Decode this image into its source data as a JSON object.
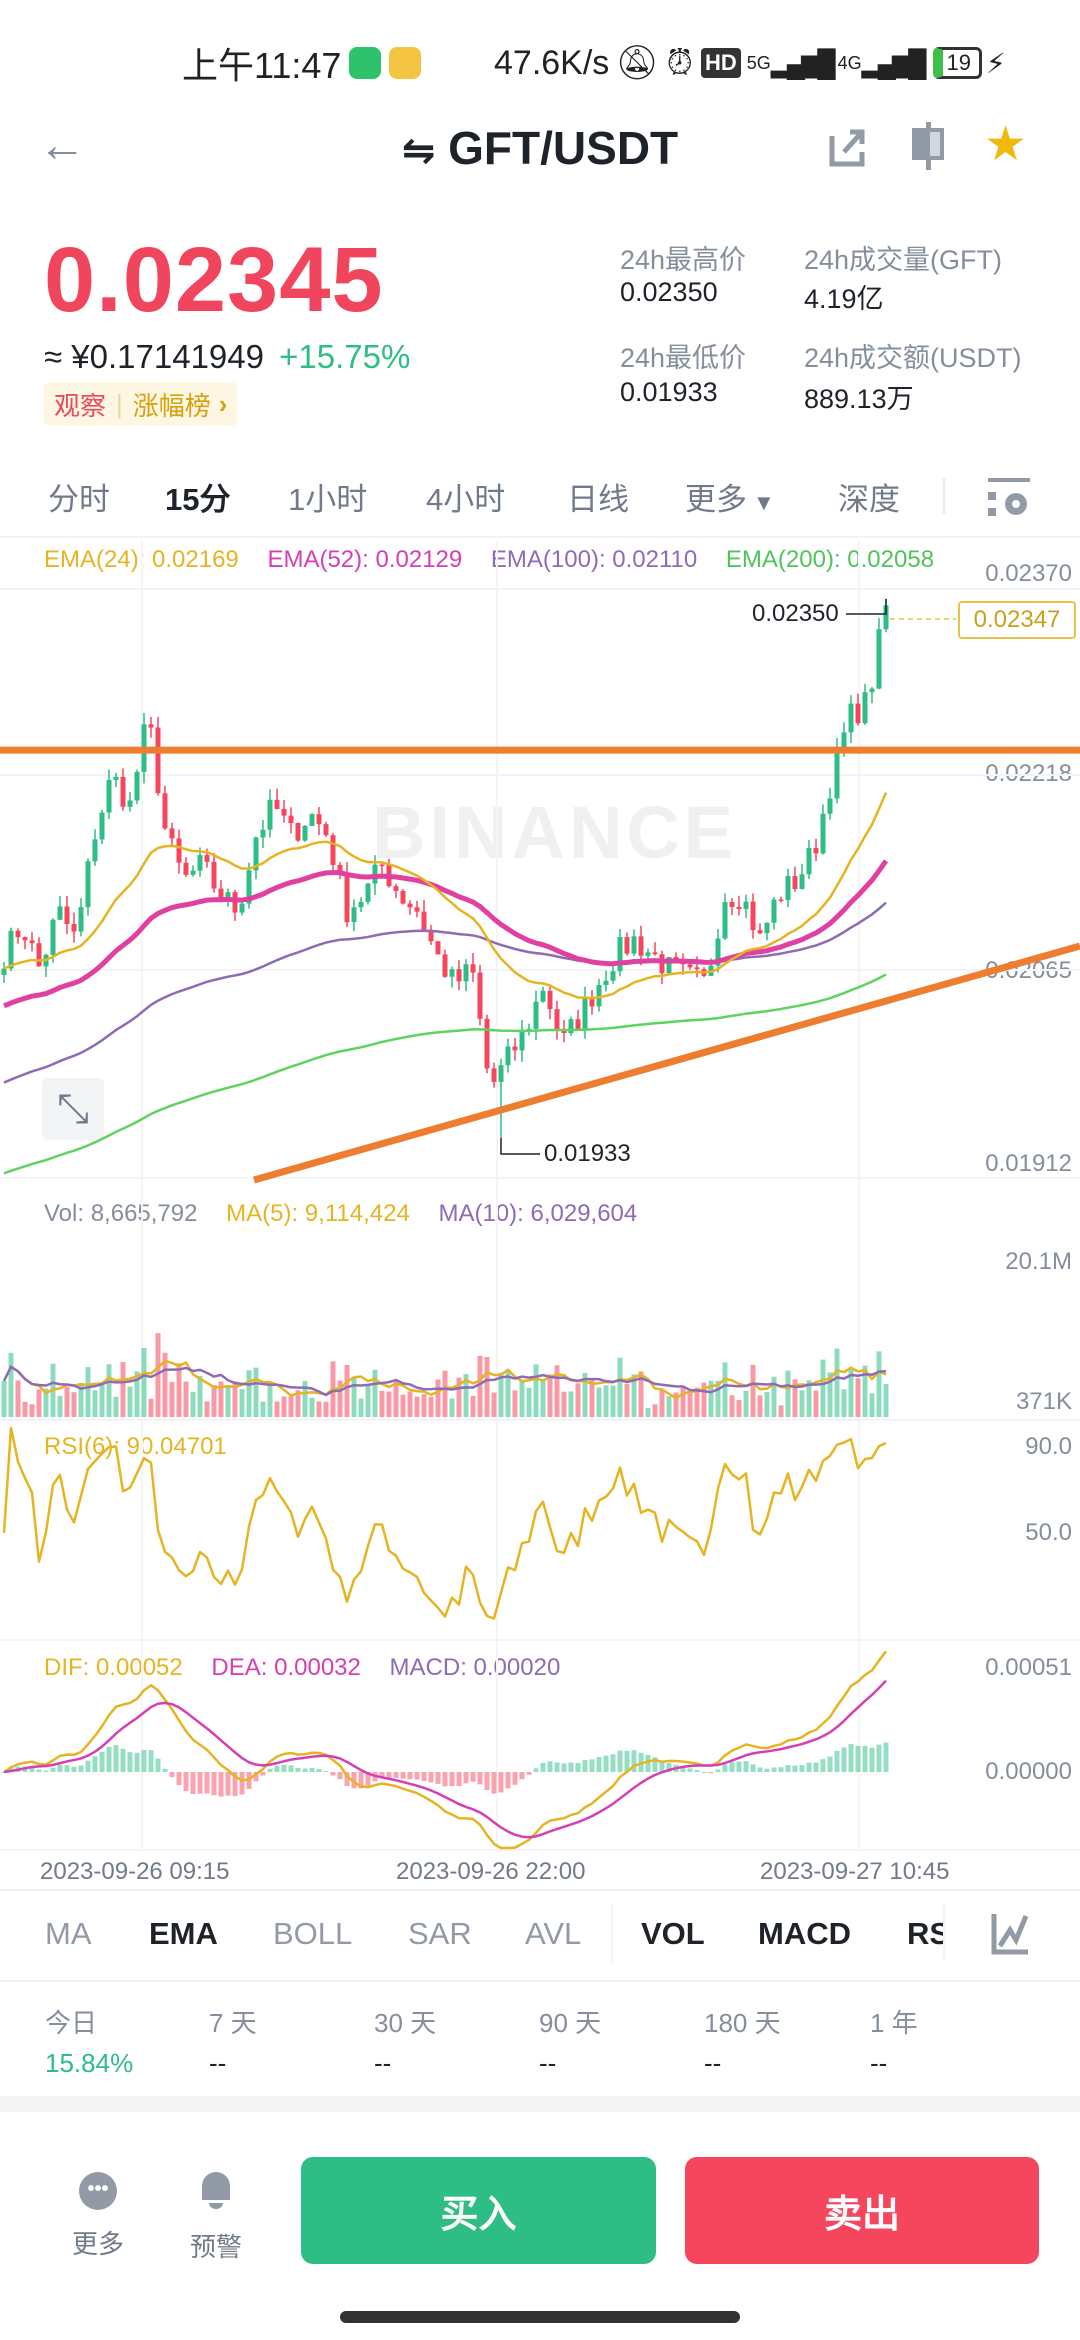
{
  "status_bar": {
    "time": "上午11:47",
    "net_speed": "47.6K/s",
    "hd": "HD",
    "sig1": "5G",
    "sig2": "4G",
    "battery": "19"
  },
  "header": {
    "title": "GFT/USDT",
    "swap_icon": "swap-arrows-icon",
    "share_icon": "share-icon",
    "layout_icon": "layout-icon",
    "favorite_icon": "star-icon"
  },
  "ticker": {
    "price": "0.02345",
    "cny": "≈ ¥0.17141949",
    "change": "+15.75%",
    "tag_watch": "观察",
    "tag_rank": "涨幅榜",
    "tag_chevron": "›",
    "stats": [
      {
        "label": "24h最高价",
        "value": "0.02350"
      },
      {
        "label": "24h成交量(GFT)",
        "value": "4.19亿"
      },
      {
        "label": "24h最低价",
        "value": "0.01933"
      },
      {
        "label": "24h成交额(USDT)",
        "value": "889.13万"
      }
    ]
  },
  "intervals": {
    "items": [
      "分时",
      "15分",
      "1小时",
      "4小时",
      "日线",
      "更多",
      "深度"
    ],
    "active": "15分"
  },
  "main_legend": {
    "ema24": "EMA(24): 0.02169",
    "ema52": "EMA(52): 0.02129",
    "ema100": "EMA(100): 0.02110",
    "ema200": "EMA(200): 0.02058"
  },
  "price_axis": [
    "0.02370",
    "0.02218",
    "0.02065",
    "0.01912"
  ],
  "price_marks": {
    "high": "0.02350",
    "low": "0.01933",
    "last": "0.02347"
  },
  "watermark": "BINANCE",
  "vol_legend": {
    "vol": "Vol: 8,665,792",
    "ma5": "MA(5): 9,114,424",
    "ma10": "MA(10): 6,029,604"
  },
  "vol_axis": [
    "20.1M",
    "371K"
  ],
  "rsi_legend": "RSI(6): 90.04701",
  "rsi_axis": [
    "90.0",
    "50.0"
  ],
  "macd_legend": {
    "dif": "DIF: 0.00052",
    "dea": "DEA: 0.00032",
    "macd": "MACD: 0.00020"
  },
  "macd_axis": [
    "0.00051",
    "0.00000"
  ],
  "time_axis": [
    "2023-09-26 09:15",
    "2023-09-26 22:00",
    "2023-09-27 10:45"
  ],
  "indicators": {
    "main": [
      "MA",
      "EMA",
      "BOLL",
      "SAR",
      "AVL"
    ],
    "sub": [
      "VOL",
      "MACD",
      "RSI"
    ],
    "active": [
      "EMA",
      "VOL",
      "MACD",
      "RSI"
    ]
  },
  "periods": [
    {
      "label": "今日",
      "value": "15.84%"
    },
    {
      "label": "7 天",
      "value": "--"
    },
    {
      "label": "30 天",
      "value": "--"
    },
    {
      "label": "90 天",
      "value": "--"
    },
    {
      "label": "180 天",
      "value": "--"
    },
    {
      "label": "1 年",
      "value": "--"
    }
  ],
  "bottom_bar": {
    "more": "更多",
    "alert": "预警",
    "buy": "买入",
    "sell": "卖出"
  },
  "colors": {
    "up": "#2ebd85",
    "down": "#f6465d",
    "ema24": "#e6b422",
    "ema52": "#e040a0",
    "ema100": "#8e6bb5",
    "ema200": "#5fd35f",
    "trendline": "#ee7d2f"
  },
  "chart_data": {
    "type": "candlestick",
    "interval": "15m",
    "price_range": [
      0.01912,
      0.0237
    ],
    "high": 0.0235,
    "low": 0.01933,
    "close_trace": [
      0.02075,
      0.02098,
      0.02063,
      0.02109,
      0.02086,
      0.02167,
      0.02213,
      0.0219,
      0.02259,
      0.02167,
      0.02132,
      0.02144,
      0.02121,
      0.02109,
      0.02167,
      0.0219,
      0.02167,
      0.02184,
      0.02167,
      0.02109,
      0.02121,
      0.02144,
      0.02121,
      0.02109,
      0.02075,
      0.02052,
      0.02063,
      0.01971,
      0.01994,
      0.02017,
      0.02052,
      0.02005,
      0.02028,
      0.02052,
      0.02075,
      0.02086,
      0.02075,
      0.02063,
      0.02057,
      0.02052,
      0.02121,
      0.02121,
      0.02086,
      0.02121,
      0.02132,
      0.02155,
      0.02213,
      0.02259,
      0.02271,
      0.02345
    ],
    "horizontal_level": 0.02233
  }
}
